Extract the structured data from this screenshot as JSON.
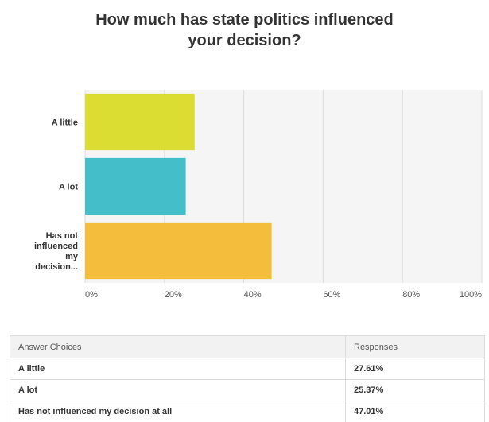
{
  "chart_data": {
    "type": "bar",
    "orientation": "horizontal",
    "title": [
      "How much has state politics influenced",
      "your decision?"
    ],
    "categories": [
      [
        "A little"
      ],
      [
        "A lot"
      ],
      [
        "Has not",
        "influenced",
        "my",
        "decision..."
      ]
    ],
    "values": [
      27.61,
      25.37,
      47.01
    ],
    "colors": [
      "#dbdd33",
      "#44bfc9",
      "#f4bd3c"
    ],
    "xlim": [
      0,
      100
    ],
    "xticks": [
      "0%",
      "20%",
      "40%",
      "60%",
      "80%",
      "100%"
    ],
    "grid": true
  },
  "table": {
    "header": {
      "choice": "Answer Choices",
      "responses": "Responses"
    },
    "rows": [
      {
        "choice": "A little",
        "response": "27.61%"
      },
      {
        "choice": "A lot",
        "response": "25.37%"
      },
      {
        "choice": "Has not influenced my decision at all",
        "response": "47.01%"
      }
    ]
  }
}
